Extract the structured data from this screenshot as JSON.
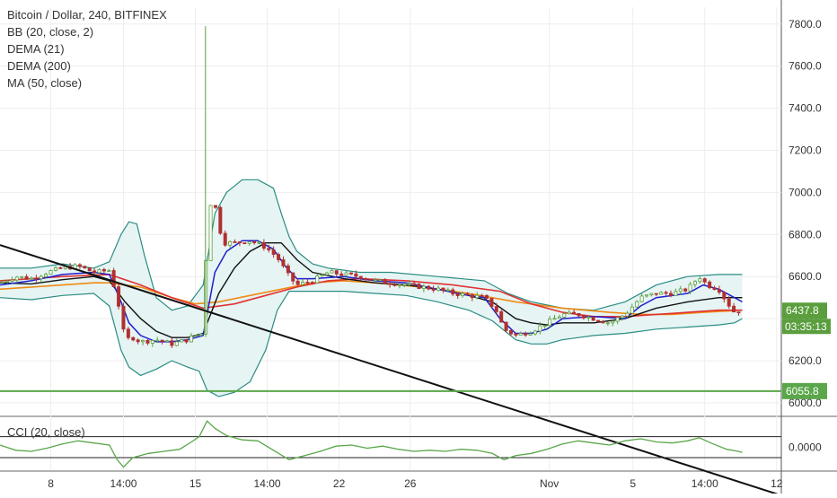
{
  "legend": {
    "title": "Bitcoin / Dollar, 240, BITFINEX",
    "ind1": "BB (20, close, 2)",
    "ind2": "DEMA (21)",
    "ind3": "DEMA (200)",
    "ind4": "MA (50, close)"
  },
  "cci_label": "CCI (20, close)",
  "chart_data": {
    "type": "candlestick",
    "symbol": "Bitcoin / Dollar, 240, BITFINEX",
    "y_ticks": [
      6000,
      6200,
      6400,
      6600,
      6800,
      7000,
      7200,
      7400,
      7600,
      7800
    ],
    "y_tick_labels": [
      "6000.0",
      "6200.0",
      "6400.0",
      "6600.0",
      "6800.0",
      "7000.0",
      "7200.0",
      "7400.0",
      "7600.0",
      "7800.0"
    ],
    "ylim": [
      5940,
      7880
    ],
    "x_ticks": [
      8,
      14,
      15,
      14,
      22,
      26,
      "Nov",
      5,
      14,
      12
    ],
    "x_tick_labels": [
      "8",
      "14:00",
      "15",
      "14:00",
      "22",
      "26",
      "Nov",
      "5",
      "14:00",
      "12"
    ],
    "xlim": [
      0,
      100
    ],
    "x_tick_index": [
      6.5,
      15.8,
      25,
      34.2,
      43.4,
      52.5,
      70.3,
      81,
      90.2,
      99.4
    ],
    "last_price": "6437.8",
    "countdown": "03:35:13",
    "support_level": "6055.8",
    "support_value": 6055.8,
    "trendline": [
      [
        0,
        6750
      ],
      [
        100,
        5560
      ]
    ],
    "spike": {
      "x": 26.3,
      "high": 7790,
      "low": 6330
    },
    "price_path": [
      [
        0,
        6570
      ],
      [
        2,
        6600
      ],
      [
        4,
        6590
      ],
      [
        6,
        6620
      ],
      [
        8,
        6640
      ],
      [
        10,
        6650
      ],
      [
        12,
        6620
      ],
      [
        14,
        6630
      ],
      [
        15,
        6500
      ],
      [
        16,
        6300
      ],
      [
        17,
        6310
      ],
      [
        18,
        6290
      ],
      [
        20,
        6300
      ],
      [
        22,
        6280
      ],
      [
        24,
        6300
      ],
      [
        25,
        6320
      ],
      [
        26,
        6330
      ],
      [
        26.6,
        6950
      ],
      [
        27.5,
        6940
      ],
      [
        28.5,
        6760
      ],
      [
        30,
        6760
      ],
      [
        32,
        6770
      ],
      [
        34,
        6740
      ],
      [
        35.5,
        6690
      ],
      [
        37,
        6600
      ],
      [
        38,
        6560
      ],
      [
        40,
        6580
      ],
      [
        42,
        6620
      ],
      [
        44,
        6610
      ],
      [
        46,
        6600
      ],
      [
        48,
        6580
      ],
      [
        50,
        6570
      ],
      [
        52,
        6560
      ],
      [
        54,
        6550
      ],
      [
        56,
        6540
      ],
      [
        58,
        6520
      ],
      [
        60,
        6510
      ],
      [
        62,
        6500
      ],
      [
        63.5,
        6440
      ],
      [
        64.5,
        6350
      ],
      [
        66,
        6320
      ],
      [
        68,
        6340
      ],
      [
        70,
        6380
      ],
      [
        72,
        6420
      ],
      [
        74,
        6420
      ],
      [
        76,
        6400
      ],
      [
        78,
        6380
      ],
      [
        80,
        6420
      ],
      [
        82,
        6500
      ],
      [
        84,
        6520
      ],
      [
        86,
        6520
      ],
      [
        88,
        6540
      ],
      [
        89.5,
        6600
      ],
      [
        90.5,
        6560
      ],
      [
        92,
        6540
      ],
      [
        93,
        6480
      ],
      [
        94,
        6430
      ],
      [
        95,
        6440
      ]
    ],
    "bb_upper": [
      [
        0,
        6640
      ],
      [
        4,
        6640
      ],
      [
        8,
        6660
      ],
      [
        12,
        6640
      ],
      [
        14,
        6670
      ],
      [
        15.5,
        6800
      ],
      [
        16.5,
        6860
      ],
      [
        17.5,
        6850
      ],
      [
        18.5,
        6700
      ],
      [
        20,
        6500
      ],
      [
        22,
        6440
      ],
      [
        24,
        6460
      ],
      [
        26,
        6560
      ],
      [
        27.5,
        6900
      ],
      [
        29,
        7000
      ],
      [
        31,
        7060
      ],
      [
        33,
        7060
      ],
      [
        35,
        7020
      ],
      [
        36,
        6900
      ],
      [
        37,
        6790
      ],
      [
        38,
        6720
      ],
      [
        40,
        6660
      ],
      [
        42,
        6640
      ],
      [
        46,
        6620
      ],
      [
        50,
        6620
      ],
      [
        56,
        6600
      ],
      [
        62,
        6580
      ],
      [
        65,
        6520
      ],
      [
        68,
        6480
      ],
      [
        72,
        6450
      ],
      [
        76,
        6440
      ],
      [
        80,
        6480
      ],
      [
        84,
        6560
      ],
      [
        88,
        6600
      ],
      [
        92,
        6610
      ],
      [
        95,
        6610
      ]
    ],
    "bb_lower": [
      [
        0,
        6500
      ],
      [
        4,
        6490
      ],
      [
        8,
        6510
      ],
      [
        12,
        6520
      ],
      [
        14,
        6460
      ],
      [
        15.5,
        6250
      ],
      [
        16.5,
        6170
      ],
      [
        18,
        6130
      ],
      [
        20,
        6160
      ],
      [
        22,
        6200
      ],
      [
        24,
        6170
      ],
      [
        25.5,
        6150
      ],
      [
        26.5,
        6060
      ],
      [
        28,
        6030
      ],
      [
        30,
        6050
      ],
      [
        32,
        6100
      ],
      [
        34,
        6250
      ],
      [
        35.5,
        6440
      ],
      [
        37,
        6530
      ],
      [
        40,
        6530
      ],
      [
        44,
        6530
      ],
      [
        48,
        6520
      ],
      [
        52,
        6510
      ],
      [
        56,
        6480
      ],
      [
        60,
        6440
      ],
      [
        63,
        6390
      ],
      [
        66,
        6300
      ],
      [
        68,
        6280
      ],
      [
        70,
        6280
      ],
      [
        72,
        6300
      ],
      [
        76,
        6320
      ],
      [
        80,
        6330
      ],
      [
        84,
        6350
      ],
      [
        88,
        6360
      ],
      [
        92,
        6370
      ],
      [
        94,
        6380
      ],
      [
        95,
        6400
      ]
    ],
    "bb_mid": [
      [
        0,
        6570
      ],
      [
        4,
        6565
      ],
      [
        8,
        6585
      ],
      [
        12,
        6600
      ],
      [
        14,
        6580
      ],
      [
        16,
        6480
      ],
      [
        18,
        6400
      ],
      [
        20,
        6340
      ],
      [
        22,
        6310
      ],
      [
        24,
        6310
      ],
      [
        26,
        6330
      ],
      [
        28,
        6520
      ],
      [
        30,
        6640
      ],
      [
        32,
        6720
      ],
      [
        34,
        6760
      ],
      [
        36,
        6760
      ],
      [
        38,
        6680
      ],
      [
        40,
        6620
      ],
      [
        44,
        6590
      ],
      [
        48,
        6570
      ],
      [
        52,
        6560
      ],
      [
        56,
        6540
      ],
      [
        60,
        6510
      ],
      [
        63,
        6480
      ],
      [
        66,
        6400
      ],
      [
        68,
        6380
      ],
      [
        70,
        6370
      ],
      [
        72,
        6380
      ],
      [
        76,
        6380
      ],
      [
        80,
        6400
      ],
      [
        84,
        6450
      ],
      [
        88,
        6480
      ],
      [
        92,
        6500
      ],
      [
        95,
        6500
      ]
    ],
    "dema21": [
      [
        0,
        6560
      ],
      [
        4,
        6580
      ],
      [
        8,
        6610
      ],
      [
        12,
        6620
      ],
      [
        14,
        6610
      ],
      [
        15.5,
        6480
      ],
      [
        16.5,
        6380
      ],
      [
        18,
        6320
      ],
      [
        20,
        6290
      ],
      [
        22,
        6290
      ],
      [
        24,
        6300
      ],
      [
        26,
        6320
      ],
      [
        27.5,
        6620
      ],
      [
        29,
        6720
      ],
      [
        31,
        6770
      ],
      [
        33,
        6770
      ],
      [
        35,
        6730
      ],
      [
        36.5,
        6650
      ],
      [
        38,
        6590
      ],
      [
        40,
        6590
      ],
      [
        44,
        6600
      ],
      [
        48,
        6580
      ],
      [
        52,
        6570
      ],
      [
        56,
        6540
      ],
      [
        60,
        6510
      ],
      [
        62,
        6500
      ],
      [
        64,
        6400
      ],
      [
        66,
        6330
      ],
      [
        68,
        6330
      ],
      [
        70,
        6350
      ],
      [
        72,
        6400
      ],
      [
        76,
        6410
      ],
      [
        80,
        6400
      ],
      [
        82,
        6460
      ],
      [
        84,
        6500
      ],
      [
        88,
        6520
      ],
      [
        90,
        6560
      ],
      [
        92,
        6540
      ],
      [
        94,
        6500
      ],
      [
        95,
        6480
      ]
    ],
    "dema200": [
      [
        0,
        6540
      ],
      [
        8,
        6560
      ],
      [
        12,
        6570
      ],
      [
        14,
        6570
      ],
      [
        18,
        6550
      ],
      [
        22,
        6500
      ],
      [
        25,
        6470
      ],
      [
        28,
        6480
      ],
      [
        32,
        6510
      ],
      [
        36,
        6540
      ],
      [
        40,
        6570
      ],
      [
        44,
        6580
      ],
      [
        48,
        6570
      ],
      [
        54,
        6550
      ],
      [
        60,
        6520
      ],
      [
        66,
        6480
      ],
      [
        72,
        6450
      ],
      [
        78,
        6430
      ],
      [
        82,
        6420
      ],
      [
        86,
        6420
      ],
      [
        90,
        6430
      ],
      [
        95,
        6440
      ]
    ],
    "ma50": [
      [
        0,
        6580
      ],
      [
        8,
        6600
      ],
      [
        14,
        6610
      ],
      [
        18,
        6560
      ],
      [
        22,
        6500
      ],
      [
        26,
        6450
      ],
      [
        30,
        6470
      ],
      [
        34,
        6510
      ],
      [
        38,
        6550
      ],
      [
        42,
        6580
      ],
      [
        46,
        6590
      ],
      [
        52,
        6580
      ],
      [
        58,
        6560
      ],
      [
        64,
        6530
      ],
      [
        68,
        6470
      ],
      [
        72,
        6430
      ],
      [
        76,
        6410
      ],
      [
        80,
        6410
      ],
      [
        84,
        6420
      ],
      [
        88,
        6430
      ],
      [
        92,
        6440
      ],
      [
        95,
        6440
      ]
    ],
    "cci": {
      "label": "CCI (20, close)",
      "y_tick": "0.0000",
      "levels": [
        100,
        -100
      ],
      "ylim": [
        -220,
        260
      ],
      "values": [
        [
          0,
          20
        ],
        [
          2,
          -30
        ],
        [
          4,
          -40
        ],
        [
          6,
          -10
        ],
        [
          8,
          30
        ],
        [
          10,
          60
        ],
        [
          12,
          40
        ],
        [
          14,
          20
        ],
        [
          15,
          -120
        ],
        [
          15.8,
          -190
        ],
        [
          17,
          -100
        ],
        [
          19,
          -60
        ],
        [
          21,
          -40
        ],
        [
          23,
          -20
        ],
        [
          24.5,
          50
        ],
        [
          25.5,
          100
        ],
        [
          26.5,
          250
        ],
        [
          27.5,
          180
        ],
        [
          29,
          110
        ],
        [
          31,
          70
        ],
        [
          33,
          60
        ],
        [
          35,
          -30
        ],
        [
          37,
          -120
        ],
        [
          39,
          -80
        ],
        [
          41,
          -40
        ],
        [
          43,
          10
        ],
        [
          45,
          20
        ],
        [
          47,
          -10
        ],
        [
          49,
          10
        ],
        [
          51,
          -20
        ],
        [
          53,
          -40
        ],
        [
          55,
          -30
        ],
        [
          57,
          -40
        ],
        [
          59,
          -20
        ],
        [
          61,
          -30
        ],
        [
          63,
          -60
        ],
        [
          64.5,
          -120
        ],
        [
          66,
          -80
        ],
        [
          68,
          -60
        ],
        [
          70,
          -20
        ],
        [
          72,
          30
        ],
        [
          74,
          60
        ],
        [
          76,
          40
        ],
        [
          78,
          20
        ],
        [
          80,
          60
        ],
        [
          82,
          80
        ],
        [
          84,
          50
        ],
        [
          86,
          40
        ],
        [
          88,
          60
        ],
        [
          89.5,
          90
        ],
        [
          91,
          40
        ],
        [
          93,
          -20
        ],
        [
          94.5,
          -40
        ],
        [
          95,
          -50
        ]
      ]
    },
    "colors": {
      "bb": "#2a8c82",
      "bb_fill": "#e6f4f4",
      "dema21": "#1f1fcf",
      "dema200": "#f08a14",
      "ma50": "#e03232",
      "mid": "#111111",
      "up": "#5a9e3e",
      "down": "#b03030",
      "support": "#5aa64a",
      "trend": "#111111",
      "cci": "#5aa64a"
    }
  }
}
